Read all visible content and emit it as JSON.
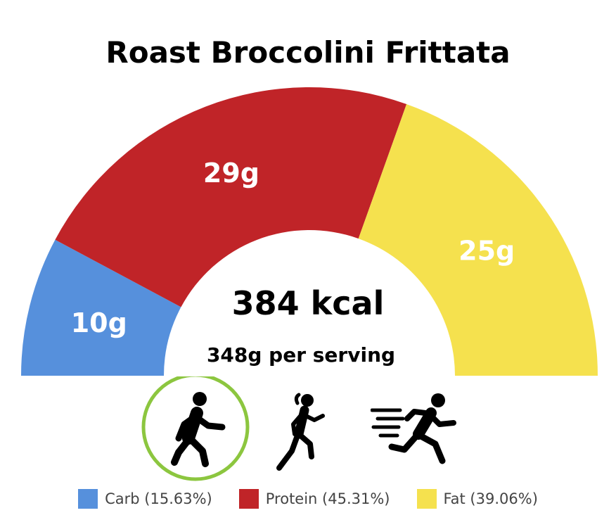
{
  "chart_data": {
    "type": "pie",
    "subtype": "half-donut-gauge",
    "title": "Roast Broccolini Frittata",
    "center_text": "384 kcal",
    "sub_text": "348g per serving",
    "slices": [
      {
        "name": "Carb",
        "value": 10,
        "label": "10g",
        "percent_label": "Carb (15.63%)",
        "color": "#5690dc"
      },
      {
        "name": "Protein",
        "value": 29,
        "label": "29g",
        "percent_label": "Protein (45.31%)",
        "color": "#c02428"
      },
      {
        "name": "Fat",
        "value": 25,
        "label": "25g",
        "percent_label": "Fat (39.06%)",
        "color": "#f5e14e"
      }
    ],
    "legend_position": "bottom"
  },
  "activity_icons": [
    {
      "icon": "walking-icon",
      "selected": true
    },
    {
      "icon": "running-icon",
      "selected": false
    },
    {
      "icon": "sprinting-icon",
      "selected": false
    }
  ],
  "colors": {
    "selected_ring": "#8cc63f",
    "icon": "#000000",
    "label_text": "#ffffff"
  }
}
